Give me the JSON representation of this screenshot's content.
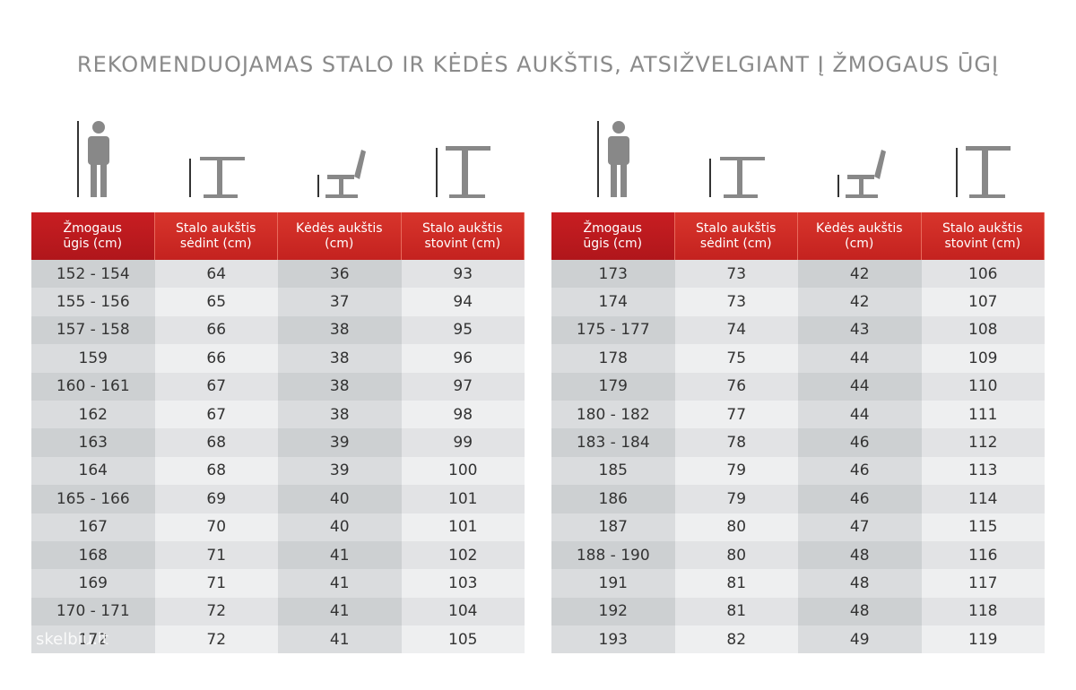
{
  "header": {
    "title": "REKOMENDUOJAMAS STALO IR KĖDĖS AUKŠTIS, ATSIŽVELGIANT Į ŽMOGAUS ŪGĮ"
  },
  "tables": [
    {
      "columns": [
        "Žmogaus\nūgis (cm)",
        "Stalo aukštis\nsėdint (cm)",
        "Kėdės aukštis\n(cm)",
        "Stalo aukštis\nstovint (cm)"
      ],
      "rows": [
        [
          "152 - 154",
          64,
          36,
          93
        ],
        [
          "155 - 156",
          65,
          37,
          94
        ],
        [
          "157 - 158",
          66,
          38,
          95
        ],
        [
          "159",
          66,
          38,
          96
        ],
        [
          "160 - 161",
          67,
          38,
          97
        ],
        [
          "162",
          67,
          38,
          98
        ],
        [
          "163",
          68,
          39,
          99
        ],
        [
          "164",
          68,
          39,
          100
        ],
        [
          "165 - 166",
          69,
          40,
          101
        ],
        [
          "167",
          70,
          40,
          101
        ],
        [
          "168",
          71,
          41,
          102
        ],
        [
          "169",
          71,
          41,
          103
        ],
        [
          "170 - 171",
          72,
          41,
          104
        ],
        [
          "172",
          72,
          41,
          105
        ]
      ]
    },
    {
      "columns": [
        "Žmogaus\nūgis (cm)",
        "Stalo aukštis\nsėdint (cm)",
        "Kėdės aukštis\n(cm)",
        "Stalo aukštis\nstovint (cm)"
      ],
      "rows": [
        [
          "173",
          73,
          42,
          106
        ],
        [
          "174",
          73,
          42,
          107
        ],
        [
          "175 - 177",
          74,
          43,
          108
        ],
        [
          "178",
          75,
          44,
          109
        ],
        [
          "179",
          76,
          44,
          110
        ],
        [
          "180 - 182",
          77,
          44,
          111
        ],
        [
          "183 - 184",
          78,
          46,
          112
        ],
        [
          "185",
          79,
          46,
          113
        ],
        [
          "186",
          79,
          46,
          114
        ],
        [
          "187",
          80,
          47,
          115
        ],
        [
          "188 - 190",
          80,
          48,
          116
        ],
        [
          "191",
          81,
          48,
          117
        ],
        [
          "192",
          81,
          48,
          118
        ],
        [
          "193",
          82,
          49,
          119
        ]
      ]
    }
  ],
  "watermark": "skelbiu.lt"
}
